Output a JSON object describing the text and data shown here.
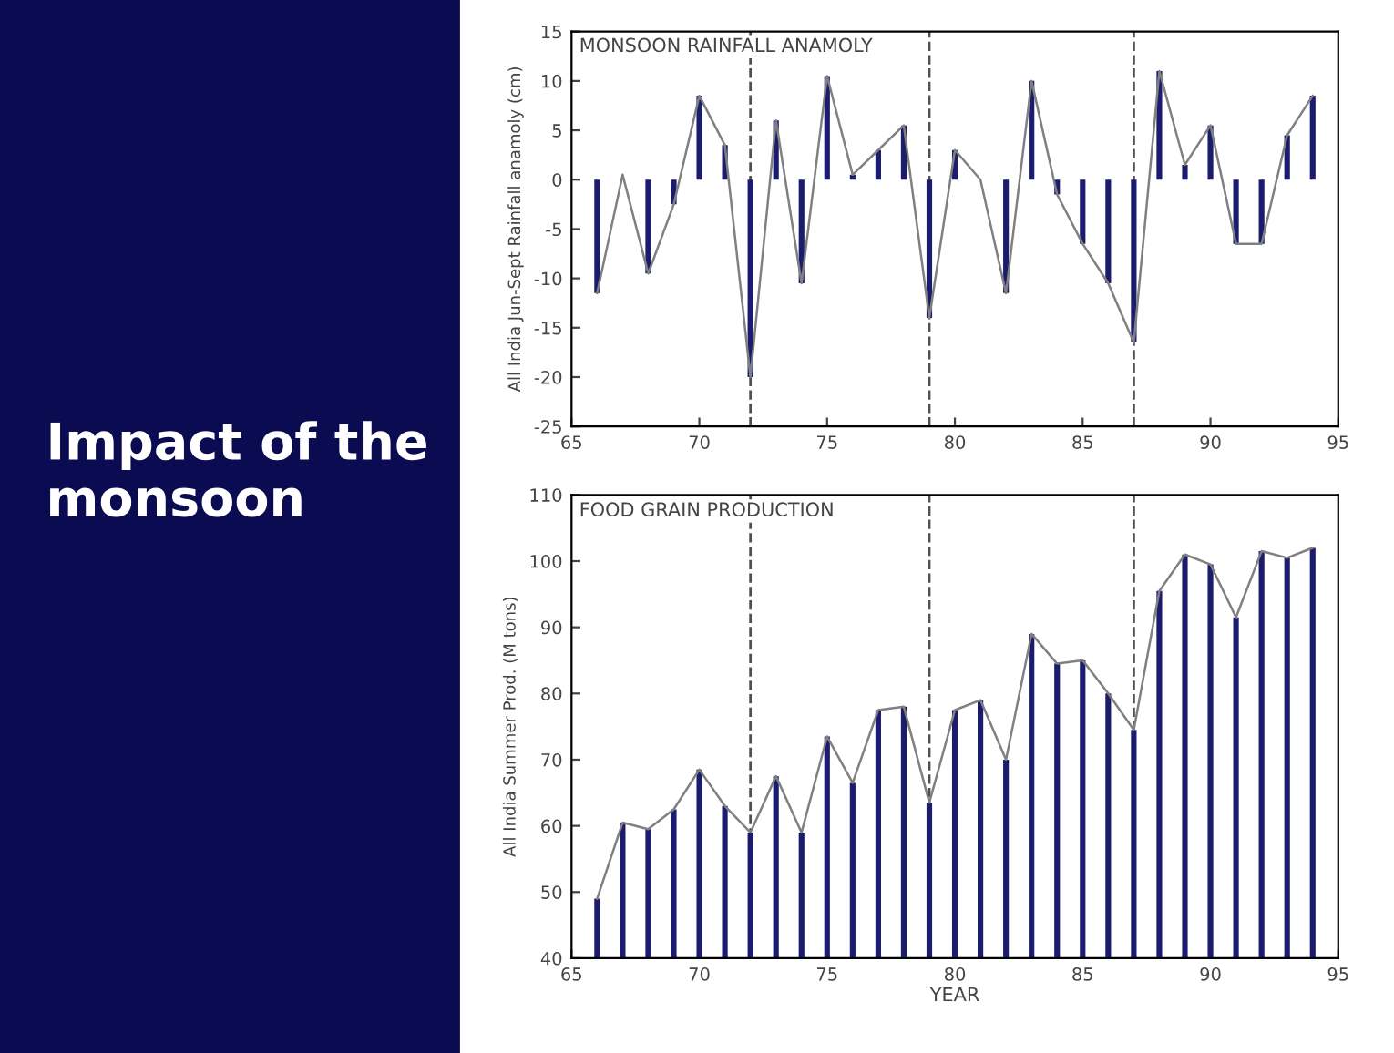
{
  "chart_data": [
    {
      "type": "other",
      "title": "Impact of the monsoon"
    },
    {
      "type": "bar",
      "title": "MONSOON RAINFALL ANAMOLY",
      "ylabel": "All India Jun-Sept Rainfall anamoly (cm)",
      "x": [
        66,
        67,
        68,
        69,
        70,
        71,
        72,
        73,
        74,
        75,
        76,
        77,
        78,
        79,
        80,
        81,
        82,
        83,
        84,
        85,
        86,
        87,
        88,
        89,
        90,
        91,
        92,
        93,
        94
      ],
      "series": [
        {
          "type": "bar",
          "color": "#1c1c6e",
          "values": [
            -11.5,
            null,
            -9.5,
            -2.5,
            8.5,
            3.5,
            -20,
            6,
            -10.5,
            10.5,
            0.5,
            3,
            5.5,
            -14,
            3,
            0,
            -11.5,
            10,
            -1.5,
            -6.5,
            -10.5,
            -16.5,
            11,
            1.5,
            5.5,
            -6.5,
            -6.5,
            4.5,
            8.5
          ]
        },
        {
          "type": "line",
          "color": "#808080",
          "values": [
            -11.5,
            0.5,
            -9.5,
            -2.5,
            8.5,
            3.5,
            -20,
            6,
            -10.5,
            10.5,
            0.5,
            3,
            5.5,
            -14,
            3,
            0,
            -11.5,
            10,
            -1.5,
            -6.5,
            -10.5,
            -16.5,
            11,
            1.5,
            5.5,
            -6.5,
            -6.5,
            4.5,
            8.5
          ]
        }
      ],
      "xlim": [
        65,
        95
      ],
      "xticks": [
        65,
        70,
        75,
        80,
        85,
        90,
        95
      ],
      "ylim": [
        -25,
        15
      ],
      "yticks": [
        -25,
        -20,
        -15,
        -10,
        -5,
        0,
        5,
        10,
        15
      ],
      "ref_lines": [
        {
          "axis": "x",
          "value": 72,
          "line_style": "dashed",
          "color": "#505050"
        },
        {
          "axis": "x",
          "value": 79,
          "line_style": "dashed",
          "color": "#505050"
        },
        {
          "axis": "x",
          "value": 87,
          "line_style": "dashed",
          "color": "#505050"
        }
      ],
      "grid": false,
      "legend": false
    },
    {
      "type": "bar",
      "title": "FOOD GRAIN PRODUCTION",
      "ylabel": "All India Summer Prod. (M tons)",
      "xlabel": "YEAR",
      "x": [
        66,
        67,
        68,
        69,
        70,
        71,
        72,
        73,
        74,
        75,
        76,
        77,
        78,
        79,
        80,
        81,
        82,
        83,
        84,
        85,
        86,
        87,
        88,
        89,
        90,
        91,
        92,
        93,
        94
      ],
      "series": [
        {
          "type": "bar",
          "color": "#1c1c6e",
          "values": [
            49,
            60.5,
            59.5,
            62.5,
            68.5,
            63,
            59,
            67.5,
            59,
            73.5,
            66.5,
            77.5,
            78,
            63.5,
            77.5,
            79,
            70,
            89,
            84.5,
            85,
            80,
            74.5,
            95.5,
            101,
            99.5,
            91.5,
            101.5,
            100.5,
            102
          ]
        },
        {
          "type": "line",
          "color": "#808080",
          "values": [
            49,
            60.5,
            59.5,
            62.5,
            68.5,
            63,
            59,
            67.5,
            59,
            73.5,
            66.5,
            77.5,
            78,
            63.5,
            77.5,
            79,
            70,
            89,
            84.5,
            85,
            80,
            74.5,
            95.5,
            101,
            99.5,
            91.5,
            101.5,
            100.5,
            102
          ]
        }
      ],
      "xlim": [
        65,
        95
      ],
      "xticks": [
        65,
        70,
        75,
        80,
        85,
        90,
        95
      ],
      "ylim": [
        40,
        110
      ],
      "yticks": [
        40,
        50,
        60,
        70,
        80,
        90,
        100,
        110
      ],
      "ref_lines": [
        {
          "axis": "x",
          "value": 72,
          "line_style": "dashed",
          "color": "#505050"
        },
        {
          "axis": "x",
          "value": 79,
          "line_style": "dashed",
          "color": "#505050"
        },
        {
          "axis": "x",
          "value": 87,
          "line_style": "dashed",
          "color": "#505050"
        }
      ],
      "grid": false,
      "legend": false
    }
  ]
}
